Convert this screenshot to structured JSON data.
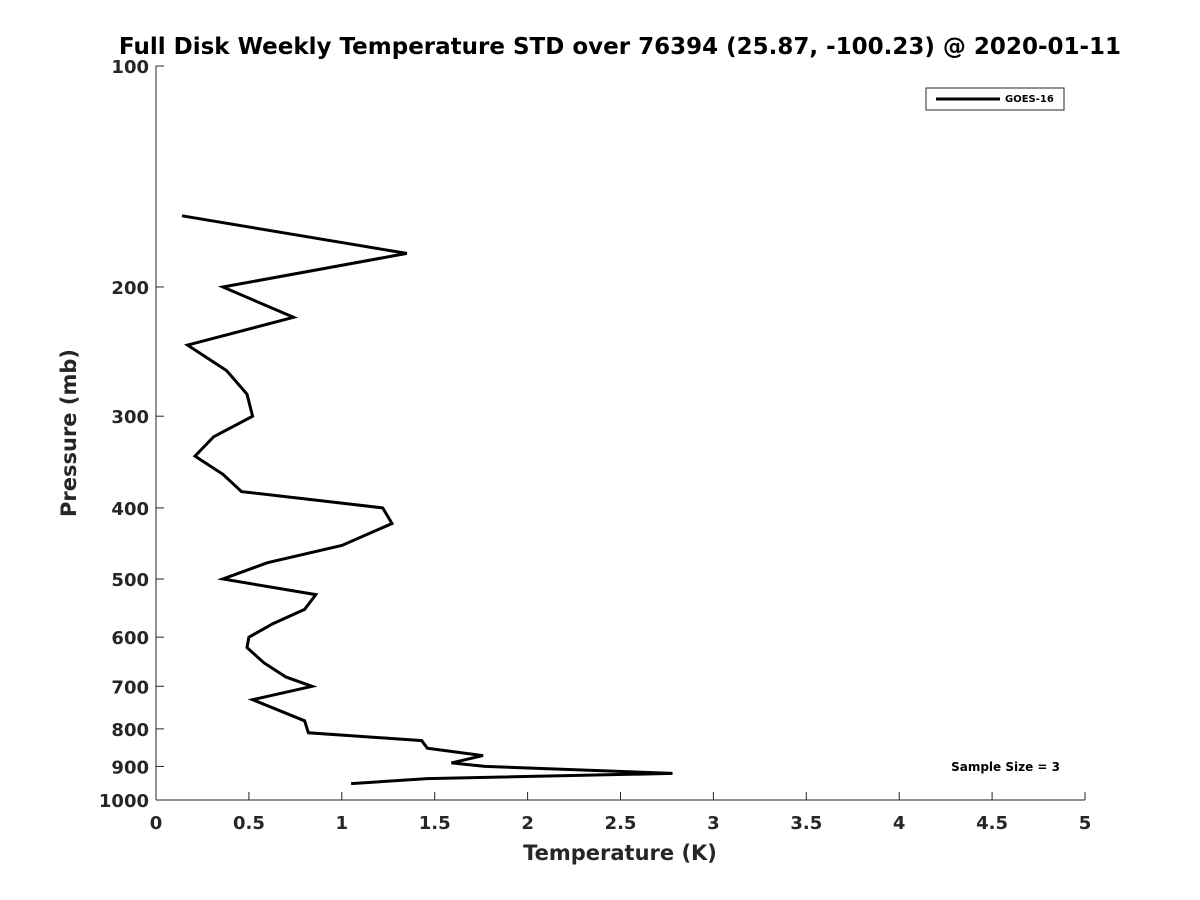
{
  "chart_data": {
    "type": "line",
    "title": "Full Disk Weekly Temperature STD over 76394 (25.87, -100.23) @ 2020-01-11",
    "xlabel": "Temperature (K)",
    "ylabel": "Pressure (mb)",
    "xlim": [
      0,
      5
    ],
    "ylim": [
      100,
      1000
    ],
    "yscale": "log",
    "yreversed": true,
    "xticks": [
      "0",
      "0.5",
      "1",
      "1.5",
      "2",
      "2.5",
      "3",
      "3.5",
      "4",
      "4.5",
      "5"
    ],
    "yticks": [
      {
        "value": 100,
        "label": "100"
      },
      {
        "value": 200,
        "label": "200"
      },
      {
        "value": 300,
        "label": "300"
      },
      {
        "value": 400,
        "label": "400"
      },
      {
        "value": 500,
        "label": "500"
      },
      {
        "value": 600,
        "label": "600"
      },
      {
        "value": 700,
        "label": "700"
      },
      {
        "value": 800,
        "label": "800"
      },
      {
        "value": 900,
        "label": "900"
      },
      {
        "value": 1000,
        "label": "1000"
      }
    ],
    "legend_position": "top-right",
    "grid": false,
    "series": [
      {
        "name": "GOES-16",
        "color": "#000000",
        "points": [
          {
            "x": 0.14,
            "y": 160
          },
          {
            "x": 1.35,
            "y": 180
          },
          {
            "x": 0.36,
            "y": 200
          },
          {
            "x": 0.74,
            "y": 220
          },
          {
            "x": 0.17,
            "y": 240
          },
          {
            "x": 0.38,
            "y": 260
          },
          {
            "x": 0.49,
            "y": 280
          },
          {
            "x": 0.52,
            "y": 300
          },
          {
            "x": 0.31,
            "y": 320
          },
          {
            "x": 0.21,
            "y": 340
          },
          {
            "x": 0.36,
            "y": 360
          },
          {
            "x": 0.46,
            "y": 380
          },
          {
            "x": 1.22,
            "y": 400
          },
          {
            "x": 1.27,
            "y": 420
          },
          {
            "x": 1.0,
            "y": 450
          },
          {
            "x": 0.6,
            "y": 475
          },
          {
            "x": 0.36,
            "y": 500
          },
          {
            "x": 0.86,
            "y": 525
          },
          {
            "x": 0.8,
            "y": 550
          },
          {
            "x": 0.63,
            "y": 575
          },
          {
            "x": 0.5,
            "y": 600
          },
          {
            "x": 0.49,
            "y": 620
          },
          {
            "x": 0.58,
            "y": 650
          },
          {
            "x": 0.7,
            "y": 680
          },
          {
            "x": 0.84,
            "y": 700
          },
          {
            "x": 0.52,
            "y": 730
          },
          {
            "x": 0.8,
            "y": 780
          },
          {
            "x": 0.82,
            "y": 810
          },
          {
            "x": 1.43,
            "y": 830
          },
          {
            "x": 1.46,
            "y": 850
          },
          {
            "x": 1.76,
            "y": 870
          },
          {
            "x": 1.59,
            "y": 890
          },
          {
            "x": 1.77,
            "y": 900
          },
          {
            "x": 2.78,
            "y": 920
          },
          {
            "x": 1.46,
            "y": 935
          },
          {
            "x": 1.05,
            "y": 950
          }
        ]
      }
    ],
    "annotations": [
      "Sample Size = 3"
    ]
  }
}
